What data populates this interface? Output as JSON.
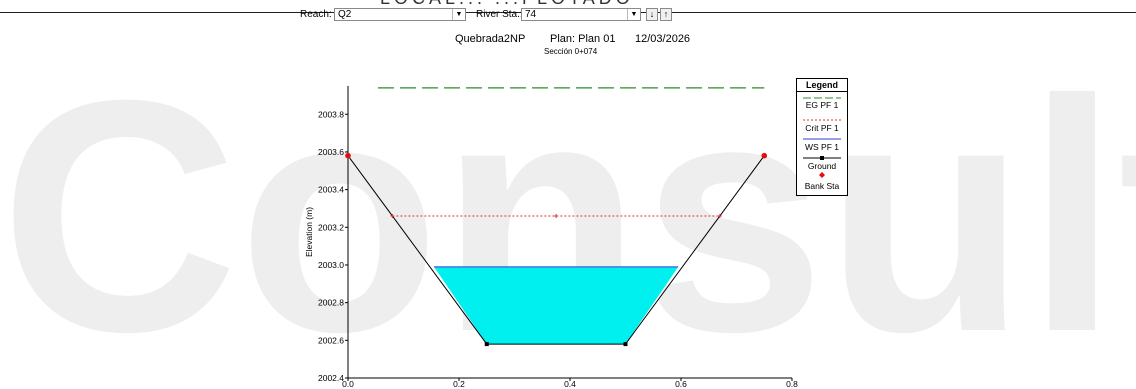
{
  "page_header": {
    "cut_title": "LOCAL... ...FLOTADO"
  },
  "toolbar": {
    "reach_label": "Reach:",
    "reach_value": "Q2",
    "river_sta_label": "River Sta.:",
    "river_sta_value": "74",
    "down_icon": "arrow-down-icon",
    "up_icon": "arrow-up-icon"
  },
  "header": {
    "project": "Quebrada2NP",
    "plan": "Plan: Plan 01",
    "date": "12/03/2026",
    "section": "Sección 0+074"
  },
  "watermark": {
    "text": "Consultores",
    "color": "#eeeeee"
  },
  "legend": {
    "title": "Legend",
    "items": [
      "EG PF 1",
      "Crit PF 1",
      "WS PF 1",
      "Ground",
      "Bank Sta"
    ]
  },
  "colors": {
    "eg": "#2e8b2e",
    "crit": "#e03030",
    "ws": "#2c3fd0",
    "water_fill": "#00f0f0",
    "ground": "#000000",
    "bank": "#e01010"
  },
  "chart_data": {
    "type": "line",
    "title": "",
    "xlabel": "",
    "ylabel": "Elevation (m)",
    "xlim": [
      0.0,
      0.8
    ],
    "ylim": [
      2002.4,
      2003.95
    ],
    "x_ticks": [
      "0.0",
      "0.2",
      "0.4",
      "0.6",
      "0.8"
    ],
    "y_ticks": [
      "2002.4",
      "2002.6",
      "2002.8",
      "2003.0",
      "2003.2",
      "2003.4",
      "2003.6",
      "2003.8"
    ],
    "ground": {
      "x": [
        0.0,
        0.25,
        0.5,
        0.75
      ],
      "y": [
        2003.58,
        2002.58,
        2002.58,
        2003.58
      ]
    },
    "bank_stations": {
      "x": [
        0.0,
        0.75
      ],
      "y": [
        2003.58,
        2003.58
      ]
    },
    "series": [
      {
        "name": "EG PF 1",
        "y": 2003.94,
        "x": [
          0.0,
          0.75
        ]
      },
      {
        "name": "Crit PF 1",
        "y": 2003.26,
        "x": [
          0.08,
          0.67
        ]
      },
      {
        "name": "WS PF 1",
        "y": 2002.99,
        "x": [
          0.155,
          0.595
        ]
      }
    ]
  }
}
